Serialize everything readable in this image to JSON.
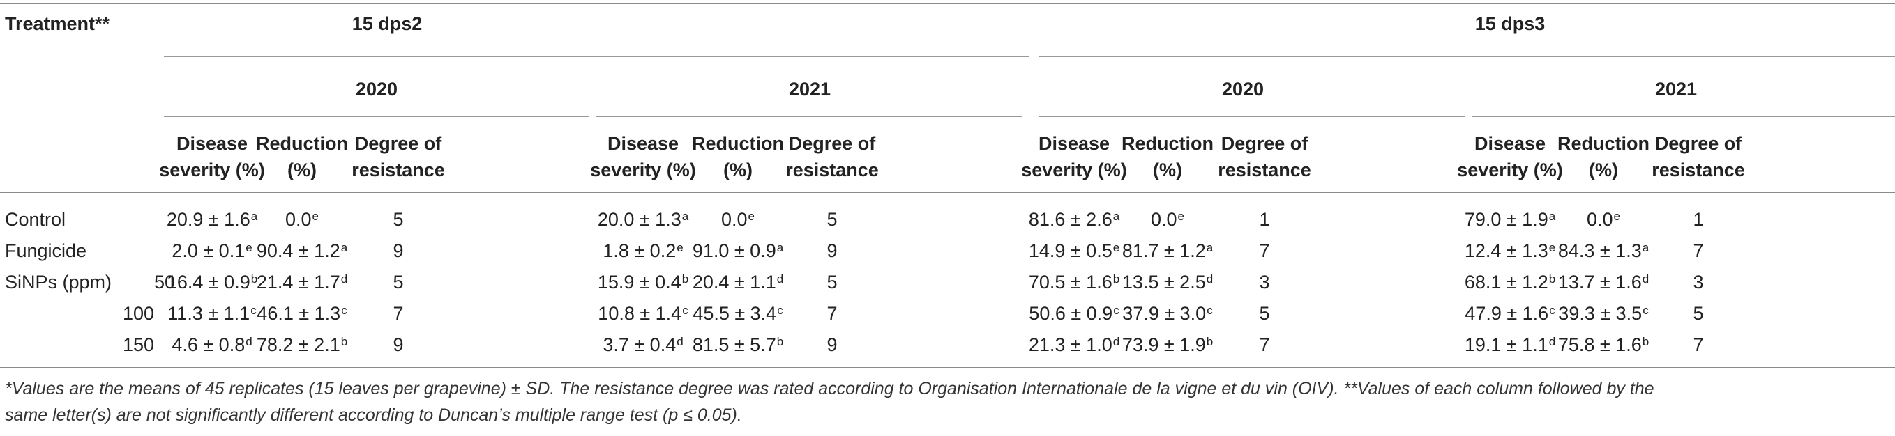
{
  "table": {
    "header": {
      "treatment": "Treatment**",
      "groups": [
        "15 dps2",
        "15 dps3"
      ],
      "years": [
        "2020",
        "2021",
        "2020",
        "2021"
      ],
      "col_line1": [
        "Disease",
        "Reduction",
        "Degree of"
      ],
      "col_line2": [
        "severity (%)",
        "(%)",
        "resistance"
      ]
    },
    "rows": [
      {
        "label": "Control",
        "sublabel": "",
        "cells": [
          {
            "v": "20.9 ± 1.6",
            "s": "a"
          },
          {
            "v": "0.0",
            "s": "e"
          },
          {
            "v": "5",
            "s": ""
          },
          {
            "v": "20.0 ± 1.3",
            "s": "a"
          },
          {
            "v": "0.0",
            "s": "e"
          },
          {
            "v": "5",
            "s": ""
          },
          {
            "v": "81.6 ± 2.6",
            "s": "a"
          },
          {
            "v": "0.0",
            "s": "e"
          },
          {
            "v": "1",
            "s": ""
          },
          {
            "v": "79.0 ± 1.9",
            "s": "a"
          },
          {
            "v": "0.0",
            "s": "e"
          },
          {
            "v": "1",
            "s": ""
          }
        ]
      },
      {
        "label": "Fungicide",
        "sublabel": "",
        "cells": [
          {
            "v": "2.0 ± 0.1",
            "s": "e"
          },
          {
            "v": "90.4 ± 1.2",
            "s": "a"
          },
          {
            "v": "9",
            "s": ""
          },
          {
            "v": "1.8 ± 0.2",
            "s": "e"
          },
          {
            "v": "91.0 ± 0.9",
            "s": "a"
          },
          {
            "v": "9",
            "s": ""
          },
          {
            "v": "14.9 ± 0.5",
            "s": "e"
          },
          {
            "v": "81.7 ± 1.2",
            "s": "a"
          },
          {
            "v": "7",
            "s": ""
          },
          {
            "v": "12.4 ± 1.3",
            "s": "e"
          },
          {
            "v": "84.3 ± 1.3",
            "s": "a"
          },
          {
            "v": "7",
            "s": ""
          }
        ]
      },
      {
        "label": "SiNPs (ppm)",
        "sublabel": "50",
        "cells": [
          {
            "v": "16.4 ± 0.9",
            "s": "b"
          },
          {
            "v": "21.4 ± 1.7",
            "s": "d"
          },
          {
            "v": "5",
            "s": ""
          },
          {
            "v": "15.9 ± 0.4",
            "s": "b"
          },
          {
            "v": "20.4 ± 1.1",
            "s": "d"
          },
          {
            "v": "5",
            "s": ""
          },
          {
            "v": "70.5 ± 1.6",
            "s": "b"
          },
          {
            "v": "13.5 ± 2.5",
            "s": "d"
          },
          {
            "v": "3",
            "s": ""
          },
          {
            "v": "68.1 ± 1.2",
            "s": "b"
          },
          {
            "v": "13.7 ± 1.6",
            "s": "d"
          },
          {
            "v": "3",
            "s": ""
          }
        ]
      },
      {
        "label": "",
        "sublabel": "100",
        "cells": [
          {
            "v": "11.3 ± 1.1",
            "s": "c"
          },
          {
            "v": "46.1 ± 1.3",
            "s": "c"
          },
          {
            "v": "7",
            "s": ""
          },
          {
            "v": "10.8 ± 1.4",
            "s": "c"
          },
          {
            "v": "45.5 ± 3.4",
            "s": "c"
          },
          {
            "v": "7",
            "s": ""
          },
          {
            "v": "50.6 ± 0.9",
            "s": "c"
          },
          {
            "v": "37.9 ± 3.0",
            "s": "c"
          },
          {
            "v": "5",
            "s": ""
          },
          {
            "v": "47.9 ± 1.6",
            "s": "c"
          },
          {
            "v": "39.3 ± 3.5",
            "s": "c"
          },
          {
            "v": "5",
            "s": ""
          }
        ]
      },
      {
        "label": "",
        "sublabel": "150",
        "cells": [
          {
            "v": "4.6 ± 0.8",
            "s": "d"
          },
          {
            "v": "78.2 ± 2.1",
            "s": "b"
          },
          {
            "v": "9",
            "s": ""
          },
          {
            "v": "3.7 ± 0.4",
            "s": "d"
          },
          {
            "v": "81.5 ± 5.7",
            "s": "b"
          },
          {
            "v": "9",
            "s": ""
          },
          {
            "v": "21.3 ± 1.0",
            "s": "d"
          },
          {
            "v": "73.9 ± 1.9",
            "s": "b"
          },
          {
            "v": "7",
            "s": ""
          },
          {
            "v": "19.1 ± 1.1",
            "s": "d"
          },
          {
            "v": "75.8 ± 1.6",
            "s": "b"
          },
          {
            "v": "7",
            "s": ""
          }
        ]
      }
    ]
  },
  "footnote": {
    "line1": "*Values are the means of 45 replicates (15 leaves per grapevine) ± SD. The resistance degree was rated according to Organisation Internationale de la vigne et du vin (OIV). **Values of each column followed by the",
    "line2": "same letter(s) are not significantly different according to Duncan’s multiple range test (p ≤ 0.05)."
  }
}
